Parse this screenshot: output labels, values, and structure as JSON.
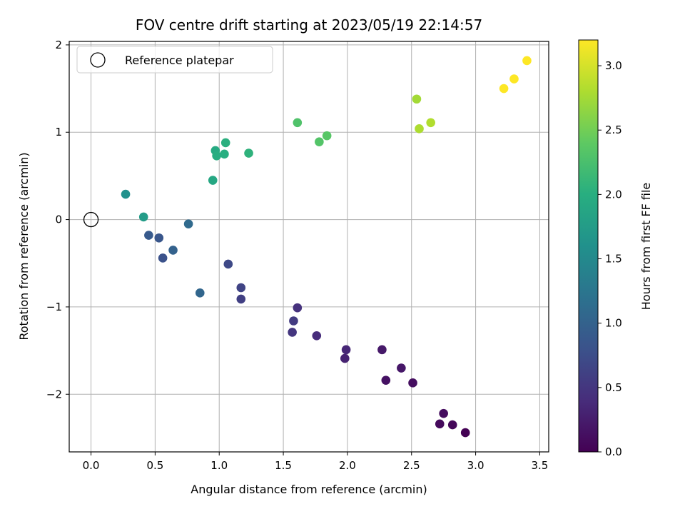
{
  "chart_data": {
    "type": "scatter",
    "title": "FOV centre drift starting at 2023/05/19 22:14:57",
    "xlabel": "Angular distance from reference (arcmin)",
    "ylabel": "Rotation from reference (arcmin)",
    "xlim": [
      -0.17,
      3.57
    ],
    "ylim": [
      -2.66,
      2.04
    ],
    "xticks": [
      0.0,
      0.5,
      1.0,
      1.5,
      2.0,
      2.5,
      3.0,
      3.5
    ],
    "xtick_labels": [
      "0.0",
      "0.5",
      "1.0",
      "1.5",
      "2.0",
      "2.5",
      "3.0",
      "3.5"
    ],
    "yticks": [
      -2,
      -1,
      0,
      1,
      2
    ],
    "ytick_labels": [
      "−2",
      "−1",
      "0",
      "1",
      "2"
    ],
    "grid": true,
    "legend": {
      "position": "upper-left",
      "entries": [
        "Reference platepar"
      ]
    },
    "reference_point": {
      "x": 0.0,
      "y": 0.0
    },
    "colorbar": {
      "label": "Hours from first FF file",
      "range": [
        0.0,
        3.2
      ],
      "ticks": [
        0.0,
        0.5,
        1.0,
        1.5,
        2.0,
        2.5,
        3.0
      ],
      "tick_labels": [
        "0.0",
        "0.5",
        "1.0",
        "1.5",
        "2.0",
        "2.5",
        "3.0"
      ],
      "colormap": "viridis"
    },
    "points": [
      {
        "x": 2.92,
        "y": -2.44,
        "hours": 0.0
      },
      {
        "x": 2.82,
        "y": -2.35,
        "hours": 0.05
      },
      {
        "x": 2.72,
        "y": -2.34,
        "hours": 0.08
      },
      {
        "x": 2.75,
        "y": -2.22,
        "hours": 0.1
      },
      {
        "x": 2.51,
        "y": -1.87,
        "hours": 0.12
      },
      {
        "x": 2.3,
        "y": -1.84,
        "hours": 0.15
      },
      {
        "x": 2.42,
        "y": -1.7,
        "hours": 0.2
      },
      {
        "x": 2.27,
        "y": -1.49,
        "hours": 0.22
      },
      {
        "x": 1.98,
        "y": -1.59,
        "hours": 0.3
      },
      {
        "x": 1.99,
        "y": -1.49,
        "hours": 0.35
      },
      {
        "x": 1.76,
        "y": -1.33,
        "hours": 0.4
      },
      {
        "x": 1.61,
        "y": -1.01,
        "hours": 0.45
      },
      {
        "x": 1.57,
        "y": -1.29,
        "hours": 0.5
      },
      {
        "x": 1.58,
        "y": -1.16,
        "hours": 0.55
      },
      {
        "x": 1.17,
        "y": -0.91,
        "hours": 0.6
      },
      {
        "x": 1.17,
        "y": -0.78,
        "hours": 0.65
      },
      {
        "x": 1.07,
        "y": -0.51,
        "hours": 0.7
      },
      {
        "x": 0.56,
        "y": -0.44,
        "hours": 0.8
      },
      {
        "x": 0.53,
        "y": -0.21,
        "hours": 0.85
      },
      {
        "x": 0.45,
        "y": -0.18,
        "hours": 0.9
      },
      {
        "x": 0.64,
        "y": -0.35,
        "hours": 1.0
      },
      {
        "x": 0.85,
        "y": -0.84,
        "hours": 1.05
      },
      {
        "x": 0.76,
        "y": -0.05,
        "hours": 1.1
      },
      {
        "x": 0.27,
        "y": 0.29,
        "hours": 1.6
      },
      {
        "x": 0.41,
        "y": 0.03,
        "hours": 1.75
      },
      {
        "x": 0.95,
        "y": 0.45,
        "hours": 1.9
      },
      {
        "x": 0.97,
        "y": 0.79,
        "hours": 1.95
      },
      {
        "x": 0.98,
        "y": 0.73,
        "hours": 1.98
      },
      {
        "x": 1.04,
        "y": 0.75,
        "hours": 2.0
      },
      {
        "x": 1.05,
        "y": 0.88,
        "hours": 2.02
      },
      {
        "x": 1.23,
        "y": 0.76,
        "hours": 2.05
      },
      {
        "x": 1.61,
        "y": 1.11,
        "hours": 2.3
      },
      {
        "x": 1.78,
        "y": 0.89,
        "hours": 2.32
      },
      {
        "x": 1.84,
        "y": 0.96,
        "hours": 2.35
      },
      {
        "x": 2.54,
        "y": 1.38,
        "hours": 2.75
      },
      {
        "x": 2.56,
        "y": 1.04,
        "hours": 2.8
      },
      {
        "x": 2.65,
        "y": 1.11,
        "hours": 2.82
      },
      {
        "x": 3.22,
        "y": 1.5,
        "hours": 3.2
      },
      {
        "x": 3.3,
        "y": 1.61,
        "hours": 3.2
      },
      {
        "x": 3.4,
        "y": 1.82,
        "hours": 3.2
      }
    ]
  }
}
